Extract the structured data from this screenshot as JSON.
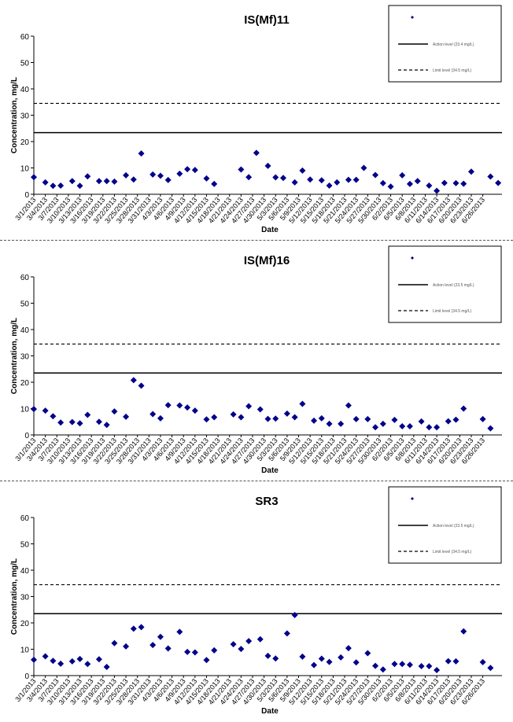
{
  "dates": [
    "3/1/2013",
    "3/4/2013",
    "3/7/2013",
    "3/10/2013",
    "3/13/2013",
    "3/16/2013",
    "3/19/2013",
    "3/22/2013",
    "3/25/2013",
    "3/28/2013",
    "3/31/2013",
    "4/3/2013",
    "4/6/2013",
    "4/9/2013",
    "4/12/2013",
    "4/15/2013",
    "4/18/2013",
    "4/21/2013",
    "4/24/2013",
    "4/27/2013",
    "4/30/2013",
    "5/3/2013",
    "5/6/2013",
    "5/9/2013",
    "5/12/2013",
    "5/15/2013",
    "5/18/2013",
    "5/21/2013",
    "5/24/2013",
    "5/27/2013",
    "5/30/2013",
    "6/2/2013",
    "6/5/2013",
    "6/8/2013",
    "6/11/2013",
    "6/14/2013",
    "6/17/2013",
    "6/20/2013",
    "6/23/2013",
    "6/26/2013"
  ],
  "chart_data": [
    {
      "type": "scatter",
      "title": "IS(Mf)11",
      "xlabel": "Date",
      "ylabel": "Concentration, mg/L",
      "ylim": [
        0,
        60
      ],
      "yticks": [
        0,
        10,
        20,
        30,
        40,
        50,
        60
      ],
      "grid": false,
      "legend_position": "top-right",
      "marker_color": "#00008b",
      "series": [
        {
          "points": [
            [
              0,
              6.5
            ],
            [
              3,
              4.5
            ],
            [
              5,
              3.2
            ],
            [
              7,
              3.3
            ],
            [
              10,
              5
            ],
            [
              12,
              3.2
            ],
            [
              14,
              6.8
            ],
            [
              17,
              5
            ],
            [
              19,
              5
            ],
            [
              21,
              4.8
            ],
            [
              24,
              7.2
            ],
            [
              26,
              5.6
            ],
            [
              28,
              15.5
            ],
            [
              31,
              7.5
            ],
            [
              33,
              7
            ],
            [
              35,
              5.4
            ],
            [
              38,
              7.8
            ],
            [
              40,
              9.5
            ],
            [
              42,
              9.2
            ],
            [
              45,
              6
            ],
            [
              47,
              3.9
            ],
            [
              54,
              9.4
            ],
            [
              56,
              6.5
            ],
            [
              58,
              15.7
            ],
            [
              61,
              10.8
            ],
            [
              63,
              6.4
            ],
            [
              65,
              6.2
            ],
            [
              68,
              4.5
            ],
            [
              70,
              9
            ],
            [
              72,
              5.6
            ],
            [
              75,
              5.3
            ],
            [
              77,
              3.3
            ],
            [
              79,
              4.5
            ],
            [
              82,
              5.5
            ],
            [
              84,
              5.5
            ],
            [
              86,
              10
            ],
            [
              89,
              7.3
            ],
            [
              91,
              4.2
            ],
            [
              93,
              2.9
            ],
            [
              96,
              7.2
            ],
            [
              98,
              3.9
            ],
            [
              100,
              5
            ],
            [
              103,
              3.3
            ],
            [
              105,
              1.3
            ],
            [
              107,
              4.3
            ],
            [
              110,
              4.2
            ],
            [
              112,
              4
            ],
            [
              114,
              8.6
            ],
            [
              119,
              6.7
            ],
            [
              121,
              4.3
            ]
          ]
        },
        {
          "name": "Action level (23.4 mg/L)",
          "type": "line",
          "y": 23.4
        },
        {
          "name": "Limit level (34.5 mg/L)",
          "type": "line",
          "y": 34.5
        }
      ]
    },
    {
      "type": "scatter",
      "title": "IS(Mf)16",
      "xlabel": "Date",
      "ylabel": "Concentration, mg/L",
      "ylim": [
        0,
        60
      ],
      "yticks": [
        0,
        10,
        20,
        30,
        40,
        50,
        60
      ],
      "grid": false,
      "legend_position": "top-right",
      "marker_color": "#00008b",
      "series": [
        {
          "points": [
            [
              0,
              9.8
            ],
            [
              3,
              9.2
            ],
            [
              5,
              7.1
            ],
            [
              7,
              4.7
            ],
            [
              10,
              4.9
            ],
            [
              12,
              4.4
            ],
            [
              14,
              7.6
            ],
            [
              17,
              5
            ],
            [
              19,
              3.8
            ],
            [
              21,
              8.9
            ],
            [
              24,
              6.9
            ],
            [
              26,
              20.8
            ],
            [
              28,
              18.7
            ],
            [
              31,
              7.9
            ],
            [
              33,
              6.3
            ],
            [
              35,
              11.3
            ],
            [
              38,
              11.2
            ],
            [
              40,
              10.4
            ],
            [
              42,
              9.2
            ],
            [
              45,
              5.9
            ],
            [
              47,
              6.7
            ],
            [
              52,
              7.8
            ],
            [
              54,
              6.7
            ],
            [
              56,
              10.9
            ],
            [
              59,
              9.7
            ],
            [
              61,
              6.1
            ],
            [
              63,
              6.2
            ],
            [
              66,
              8.1
            ],
            [
              68,
              6.7
            ],
            [
              70,
              11.8
            ],
            [
              73,
              5.4
            ],
            [
              75,
              6.3
            ],
            [
              77,
              4.2
            ],
            [
              80,
              4.2
            ],
            [
              82,
              11.2
            ],
            [
              84,
              6
            ],
            [
              87,
              6
            ],
            [
              89,
              2.9
            ],
            [
              91,
              4.2
            ],
            [
              94,
              5.7
            ],
            [
              96,
              3.3
            ],
            [
              98,
              3.3
            ],
            [
              101,
              5.1
            ],
            [
              103,
              2.9
            ],
            [
              105,
              2.9
            ],
            [
              108,
              5.2
            ],
            [
              110,
              5.8
            ],
            [
              112,
              10
            ],
            [
              117,
              6
            ],
            [
              119,
              2.5
            ]
          ]
        },
        {
          "name": "Action level (23.5 mg/L)",
          "type": "line",
          "y": 23.5
        },
        {
          "name": "Limit level (34.5 mg/L)",
          "type": "line",
          "y": 34.5
        }
      ]
    },
    {
      "type": "scatter",
      "title": "SR3",
      "xlabel": "Date",
      "ylabel": "Concentration, mg/L",
      "ylim": [
        0,
        60
      ],
      "yticks": [
        0,
        10,
        20,
        30,
        40,
        50,
        60
      ],
      "grid": false,
      "legend_position": "top-right",
      "marker_color": "#00008b",
      "series": [
        {
          "points": [
            [
              0,
              6
            ],
            [
              3,
              7.3
            ],
            [
              5,
              5.6
            ],
            [
              7,
              4.5
            ],
            [
              10,
              5.4
            ],
            [
              12,
              6.3
            ],
            [
              14,
              4.4
            ],
            [
              17,
              6.2
            ],
            [
              19,
              3.3
            ],
            [
              21,
              12.3
            ],
            [
              24,
              11.1
            ],
            [
              26,
              17.8
            ],
            [
              28,
              18.4
            ],
            [
              31,
              11.6
            ],
            [
              33,
              14.7
            ],
            [
              35,
              10.3
            ],
            [
              38,
              16.6
            ],
            [
              40,
              9
            ],
            [
              42,
              8.8
            ],
            [
              45,
              5.9
            ],
            [
              47,
              9.6
            ],
            [
              52,
              11.9
            ],
            [
              54,
              10.1
            ],
            [
              56,
              13.1
            ],
            [
              59,
              13.8
            ],
            [
              61,
              7.5
            ],
            [
              63,
              6.5
            ],
            [
              66,
              16
            ],
            [
              68,
              23
            ],
            [
              70,
              7.2
            ],
            [
              73,
              4
            ],
            [
              75,
              6.4
            ],
            [
              77,
              5.2
            ],
            [
              80,
              6.9
            ],
            [
              82,
              10.4
            ],
            [
              84,
              5
            ],
            [
              87,
              8.5
            ],
            [
              89,
              3.7
            ],
            [
              91,
              2.3
            ],
            [
              94,
              4.4
            ],
            [
              96,
              4.4
            ],
            [
              98,
              4.1
            ],
            [
              101,
              3.6
            ],
            [
              103,
              3.6
            ],
            [
              105,
              2.1
            ],
            [
              108,
              5.5
            ],
            [
              110,
              5.4
            ],
            [
              112,
              16.8
            ],
            [
              117,
              5.1
            ],
            [
              119,
              2.9
            ]
          ]
        },
        {
          "name": "Action level (23.5 mg/L)",
          "type": "line",
          "y": 23.5
        },
        {
          "name": "Limit level (34.5 mg/L)",
          "type": "line",
          "y": 34.5
        }
      ]
    }
  ]
}
